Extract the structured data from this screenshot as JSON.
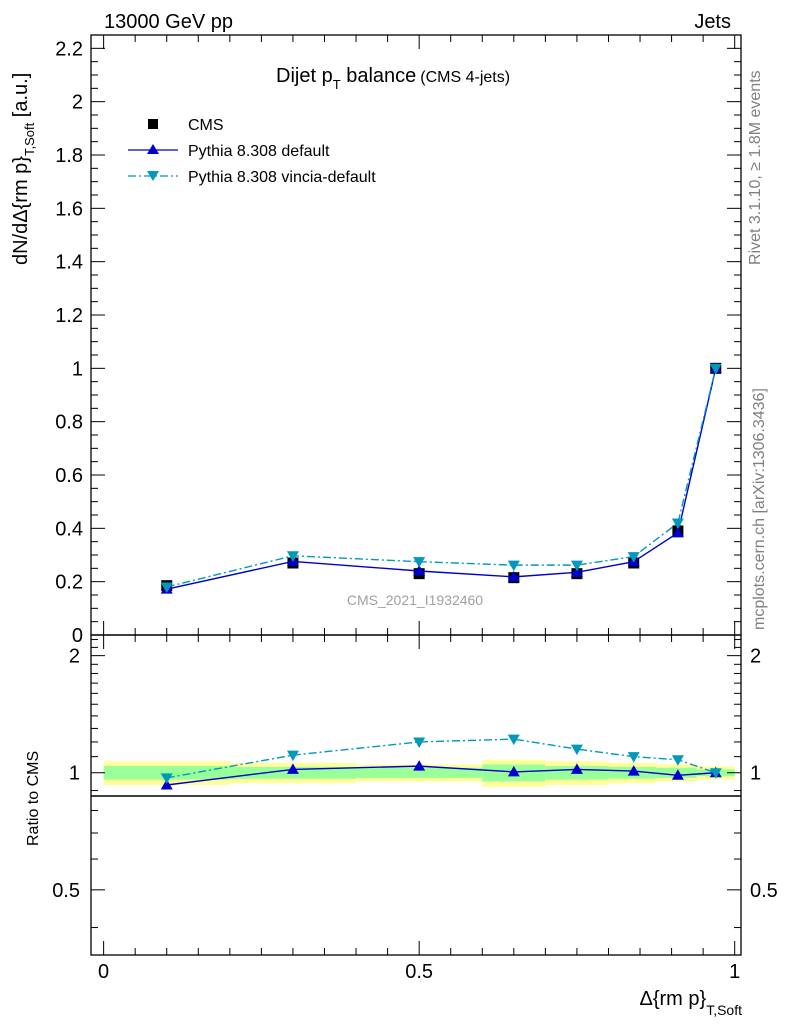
{
  "header": {
    "energy_label": "13000 GeV pp",
    "process_label": "Jets"
  },
  "side_labels": {
    "rivet": "Rivet 3.1.10, ≥ 1.8M events",
    "mcplots": "mcplots.cern.ch [arXiv:1306.3436]"
  },
  "chart_data": [
    {
      "type": "line",
      "title_main": "Dijet p",
      "title_sub": "T",
      "title_rest": " balance",
      "title_small": "(CMS 4-jets)",
      "ylabel_main": "dN/dΔ{rm p}",
      "ylabel_sub": "T,Soft",
      "ylabel_unit": " [a.u.]",
      "watermark": "CMS_2021_I1932460",
      "ylim": [
        0,
        2.25
      ],
      "y_ticks": [
        "0",
        "0.2",
        "0.4",
        "0.6",
        "0.8",
        "1",
        "1.2",
        "1.4",
        "1.6",
        "1.8",
        "2",
        "2.2"
      ],
      "x": [
        0.1,
        0.3,
        0.5,
        0.65,
        0.75,
        0.84,
        0.91,
        0.97
      ],
      "series": [
        {
          "name": "CMS",
          "color": "#000000",
          "marker": "square",
          "values": [
            0.185,
            0.27,
            0.23,
            0.215,
            0.23,
            0.27,
            0.39,
            1.0
          ]
        },
        {
          "name": "Pythia 8.308 default",
          "color": "#0000cc",
          "marker": "triangle-up",
          "values": [
            0.172,
            0.276,
            0.24,
            0.218,
            0.235,
            0.275,
            0.383,
            1.0
          ]
        },
        {
          "name": "Pythia 8.308 vincia-default",
          "color": "#0099bb",
          "marker": "triangle-down",
          "values": [
            0.18,
            0.297,
            0.275,
            0.262,
            0.262,
            0.294,
            0.42,
            1.0
          ]
        }
      ]
    },
    {
      "type": "line",
      "ylabel": "Ratio to CMS",
      "xlabel_main": "Δ{rm p}",
      "xlabel_sub": "T,Soft",
      "xlim": [
        -0.02,
        1.01
      ],
      "x_ticks": [
        "0",
        "0.5",
        "1"
      ],
      "ylim": [
        0.34,
        2.26
      ],
      "y_ticks": [
        "0.5",
        "1",
        "2"
      ],
      "x": [
        0.1,
        0.3,
        0.5,
        0.65,
        0.75,
        0.84,
        0.91,
        0.97
      ],
      "uncertainty_bins": [
        {
          "x": [
            0.0,
            0.2
          ],
          "inner": 0.04,
          "outer": 0.07
        },
        {
          "x": [
            0.2,
            0.4
          ],
          "inner": 0.035,
          "outer": 0.06
        },
        {
          "x": [
            0.4,
            0.6
          ],
          "inner": 0.03,
          "outer": 0.05
        },
        {
          "x": [
            0.6,
            0.7
          ],
          "inner": 0.05,
          "outer": 0.08
        },
        {
          "x": [
            0.7,
            0.8
          ],
          "inner": 0.04,
          "outer": 0.07
        },
        {
          "x": [
            0.8,
            0.875
          ],
          "inner": 0.035,
          "outer": 0.06
        },
        {
          "x": [
            0.875,
            0.94
          ],
          "inner": 0.03,
          "outer": 0.05
        },
        {
          "x": [
            0.94,
            1.0
          ],
          "inner": 0.02,
          "outer": 0.04
        }
      ],
      "band_colors": {
        "outer": "#ffff99",
        "inner": "#99ff99"
      },
      "series": [
        {
          "name": "Pythia 8.308 default",
          "color": "#0000cc",
          "marker": "triangle-up",
          "values": [
            0.93,
            1.02,
            1.04,
            1.005,
            1.02,
            1.01,
            0.985,
            1.0
          ]
        },
        {
          "name": "Pythia 8.308 vincia-default",
          "color": "#0099bb",
          "marker": "triangle-down",
          "values": [
            0.97,
            1.11,
            1.2,
            1.22,
            1.15,
            1.1,
            1.08,
            1.0
          ]
        }
      ]
    }
  ]
}
